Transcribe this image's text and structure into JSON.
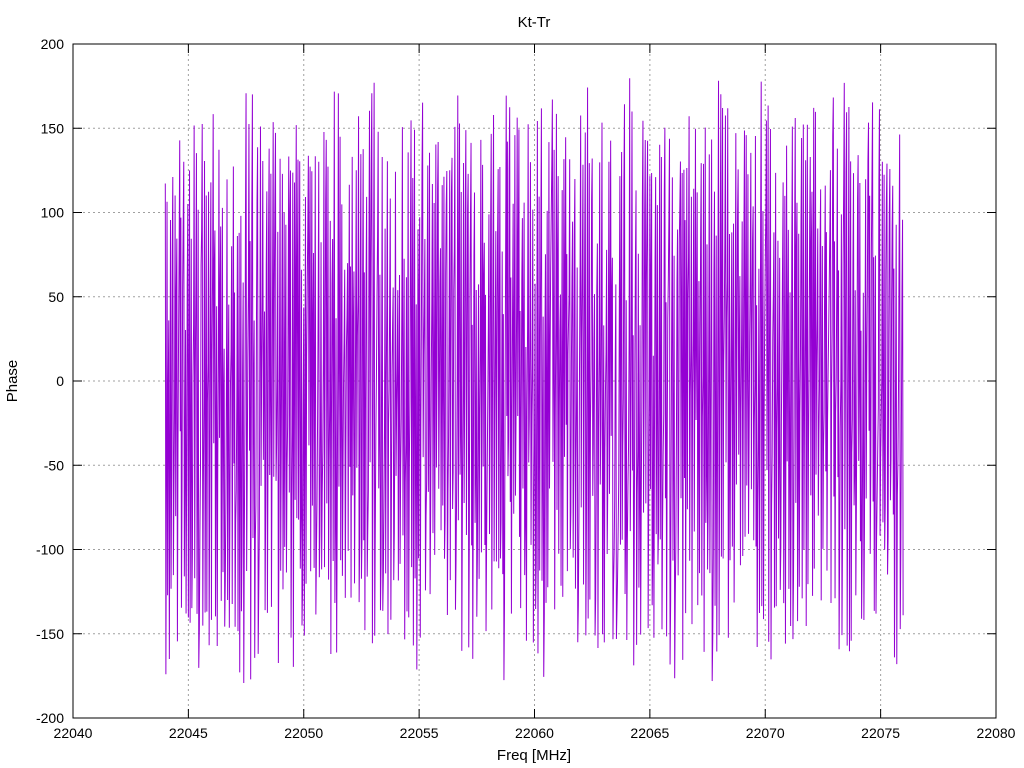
{
  "chart_data": {
    "type": "line",
    "title": "Kt-Tr",
    "xlabel": "Freq [MHz]",
    "ylabel": "Phase",
    "xlim": [
      22040,
      22080
    ],
    "ylim": [
      -200,
      200
    ],
    "xticks": [
      22040,
      22045,
      22050,
      22055,
      22060,
      22065,
      22070,
      22075,
      22080
    ],
    "yticks": [
      -200,
      -150,
      -100,
      -50,
      0,
      50,
      100,
      150,
      200
    ],
    "grid": true,
    "series_color": "#9400d3",
    "x_range": [
      22044.0,
      22076.0
    ],
    "x_step": 0.025,
    "phase_wraps_between": [
      -180,
      180
    ]
  }
}
